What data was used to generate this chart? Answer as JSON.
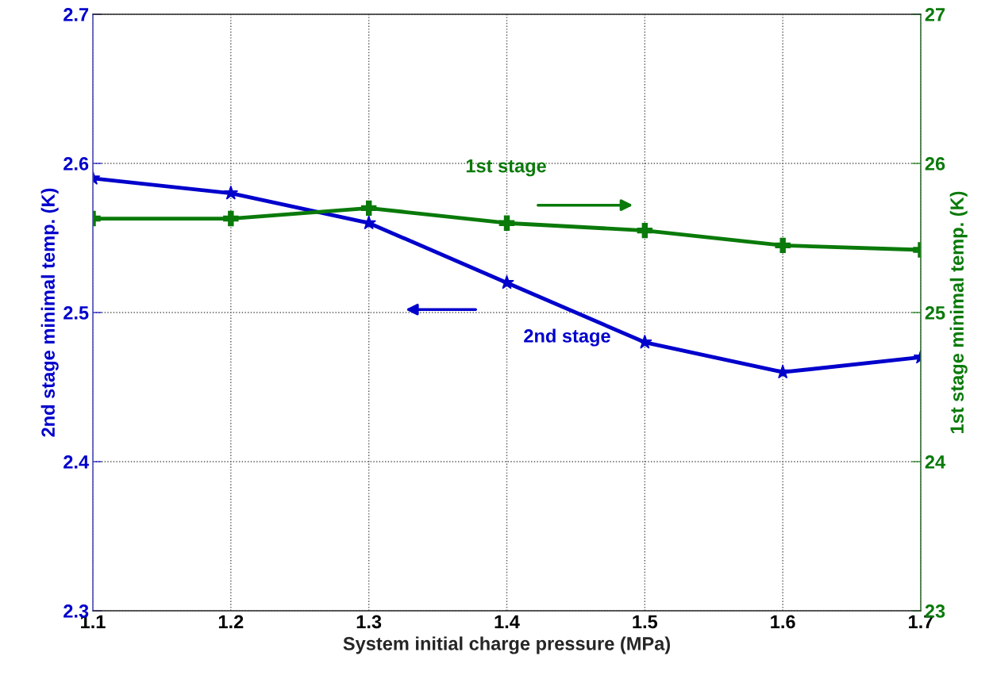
{
  "chart_data": {
    "type": "line",
    "x": [
      1.1,
      1.2,
      1.3,
      1.4,
      1.5,
      1.6,
      1.7
    ],
    "xlabel": "System initial charge pressure (MPa)",
    "ylabel": "2nd stage minimal temp. (K)",
    "y2label": "1st stage minimal temp. (K)",
    "series": [
      {
        "color": "#0000cc",
        "marker": "star",
        "values": [
          2.59,
          2.58,
          2.56,
          2.52,
          2.48,
          2.46,
          2.47
        ]
      },
      {
        "color": "#0a7a0a",
        "marker": "cross",
        "axis": "y2",
        "values": [
          25.63,
          25.63,
          25.7,
          25.6,
          25.55,
          25.45,
          25.42
        ]
      }
    ],
    "xlim": [
      1.1,
      1.7
    ],
    "xticks": [
      1.1,
      1.2,
      1.3,
      1.4,
      1.5,
      1.6,
      1.7
    ],
    "ylim": [
      2.3,
      2.7
    ],
    "yticks": [
      2.3,
      2.4,
      2.5,
      2.6,
      2.7
    ],
    "y2lim": [
      23,
      27
    ],
    "y2ticks": [
      23,
      24,
      25,
      26,
      27
    ],
    "annotations": [
      "1st stage",
      "2nd stage"
    ],
    "grid": true,
    "line_style": "solid"
  }
}
